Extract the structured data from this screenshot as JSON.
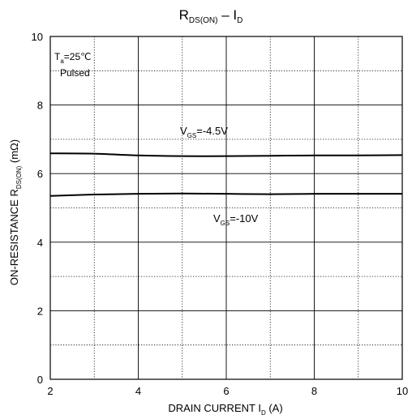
{
  "chart_data": {
    "type": "line",
    "title": {
      "main": "R",
      "main_sub": "DS(ON)",
      "sep": " – ",
      "var": "I",
      "var_sub": "D"
    },
    "xlabel": {
      "pre": "DRAIN CURRENT I",
      "sub": "D",
      "post": " (A)"
    },
    "ylabel": {
      "pre": "ON-RESISTANCE R",
      "sub": "DS(ON)",
      "post": " (mΩ)"
    },
    "xlim": [
      2,
      10
    ],
    "ylim": [
      0,
      10
    ],
    "x_ticks": [
      "2",
      "4",
      "6",
      "8",
      "10"
    ],
    "y_ticks": [
      "0",
      "2",
      "4",
      "6",
      "8",
      "10"
    ],
    "grid": {
      "major": true,
      "minor_dotted": true
    },
    "conditions": {
      "temp_pre": "T",
      "temp_sub": "a",
      "temp_post": "=25℃",
      "mode": "Pulsed"
    },
    "series": [
      {
        "name": "VGS=-4.5V",
        "label": {
          "pre": "V",
          "sub": "GS",
          "post": "=-4.5V"
        },
        "x": [
          2,
          3,
          4,
          5,
          6,
          7,
          8,
          9,
          10
        ],
        "y": [
          6.59,
          6.58,
          6.53,
          6.51,
          6.51,
          6.52,
          6.53,
          6.53,
          6.54
        ]
      },
      {
        "name": "VGS=-10V",
        "label": {
          "pre": "V",
          "sub": "GS",
          "post": "=-10V"
        },
        "x": [
          2,
          3,
          4,
          5,
          6,
          7,
          8,
          9,
          10
        ],
        "y": [
          5.35,
          5.39,
          5.41,
          5.42,
          5.41,
          5.4,
          5.41,
          5.41,
          5.41
        ]
      }
    ]
  }
}
